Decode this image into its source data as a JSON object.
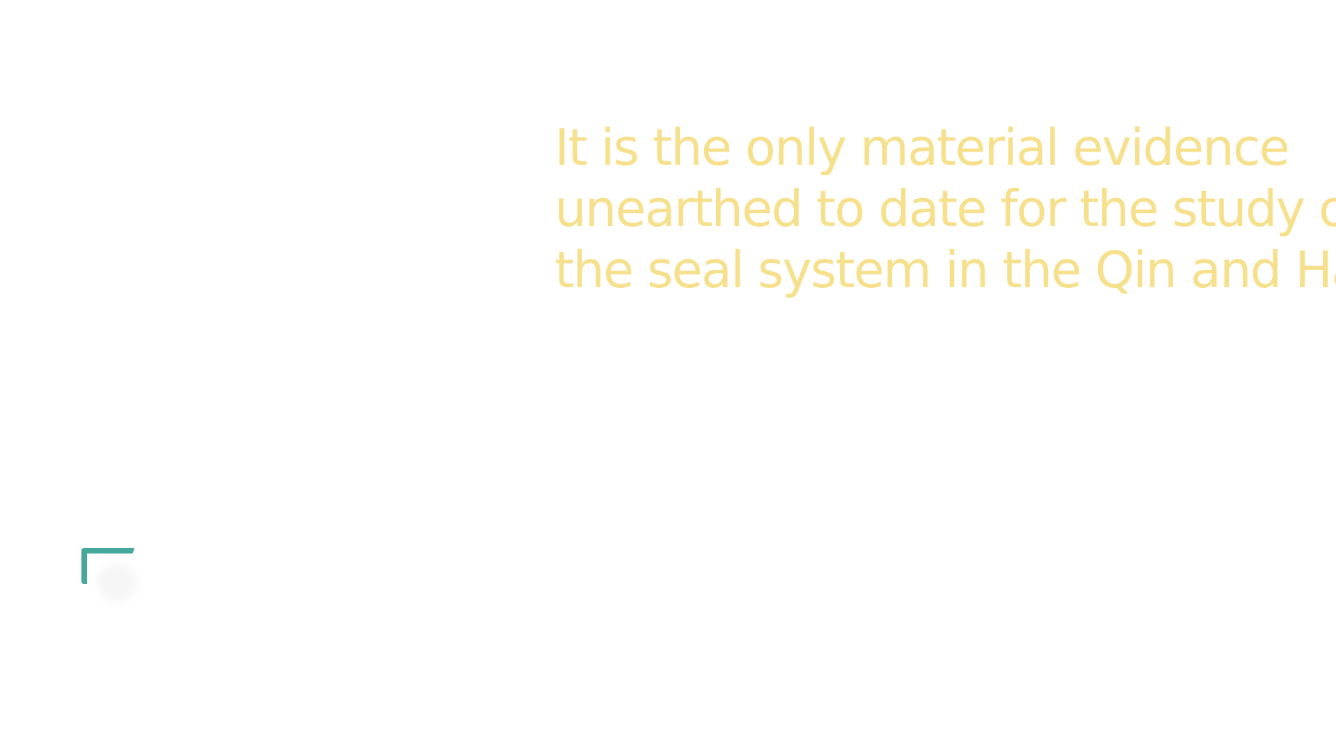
{
  "colors": {
    "background": "#ffffff",
    "headline_text": "#f7e08c",
    "accent": "#46a89a"
  },
  "headline": {
    "lines": [
      "It is the only material evidence",
      "unearthed to date for the study of",
      "the seal system in the Qin and Han"
    ]
  },
  "decoration": {
    "corner_icon": "corner-bracket-icon"
  }
}
